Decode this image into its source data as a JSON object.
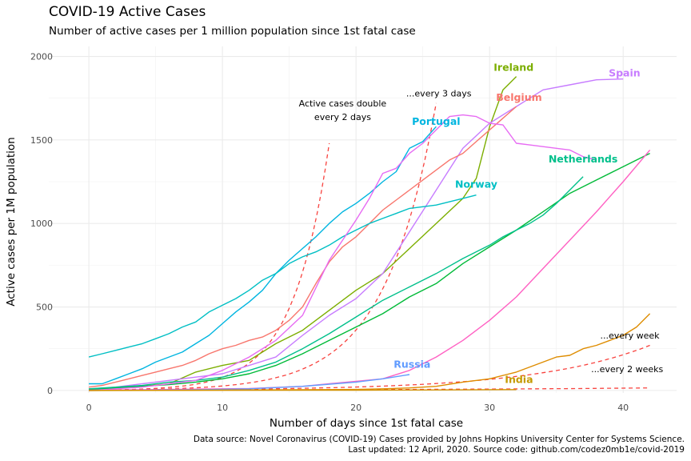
{
  "chart_data": {
    "type": "line",
    "title": "COVID-19 Active Cases",
    "subtitle": "Number of active cases per 1 million population since 1st fatal case",
    "xlabel": "Number of days since 1st fatal case",
    "ylabel": "Active cases per 1M population",
    "xlim": [
      -3,
      44
    ],
    "ylim": [
      -15,
      2060
    ],
    "x_ticks": [
      0,
      10,
      20,
      30,
      40
    ],
    "y_ticks": [
      0,
      500,
      1000,
      1500,
      2000
    ],
    "x_tick_labels": [
      "0",
      "10",
      "20",
      "30",
      "40"
    ],
    "y_tick_labels": [
      "0",
      "500",
      "1000",
      "1500",
      "2000"
    ],
    "grid": true,
    "legend": "none",
    "series": [
      {
        "name": "Ireland",
        "color": "#7CAE00",
        "x": [
          0,
          2,
          4,
          6,
          8,
          10,
          12,
          14,
          16,
          18,
          20,
          22,
          24,
          26,
          28,
          29,
          30,
          31,
          32
        ],
        "y": [
          5,
          15,
          25,
          40,
          110,
          150,
          180,
          280,
          360,
          480,
          600,
          700,
          850,
          1000,
          1150,
          1270,
          1580,
          1800,
          1880
        ]
      },
      {
        "name": "Spain",
        "color": "#C77CFF",
        "x": [
          0,
          2,
          4,
          6,
          8,
          10,
          12,
          14,
          16,
          18,
          20,
          22,
          24,
          26,
          28,
          30,
          32,
          34,
          36,
          38,
          40
        ],
        "y": [
          5,
          20,
          40,
          60,
          80,
          100,
          150,
          200,
          330,
          450,
          550,
          700,
          950,
          1200,
          1450,
          1600,
          1700,
          1800,
          1830,
          1860,
          1865
        ]
      },
      {
        "name": "Belgium",
        "color": "#F8766D",
        "x": [
          0,
          1,
          2,
          3,
          4,
          5,
          6,
          7,
          8,
          9,
          10,
          11,
          12,
          13,
          14,
          15,
          16,
          17,
          18,
          19,
          20,
          21,
          22,
          23,
          24,
          25,
          26,
          27,
          28,
          29,
          30,
          31,
          32
        ],
        "y": [
          20,
          30,
          50,
          70,
          90,
          110,
          130,
          150,
          180,
          220,
          250,
          270,
          300,
          320,
          360,
          420,
          500,
          640,
          770,
          860,
          920,
          1000,
          1080,
          1140,
          1200,
          1260,
          1320,
          1380,
          1420,
          1490,
          1560,
          1630,
          1700
        ]
      },
      {
        "name": "Portugal",
        "color": "#00B5E0",
        "x": [
          0,
          1,
          2,
          3,
          4,
          5,
          6,
          7,
          8,
          9,
          10,
          11,
          12,
          13,
          14,
          15,
          16,
          17,
          18,
          19,
          20,
          21,
          22,
          23,
          24,
          25,
          26
        ],
        "y": [
          40,
          40,
          70,
          100,
          130,
          170,
          200,
          230,
          280,
          330,
          400,
          470,
          530,
          600,
          700,
          780,
          850,
          920,
          1000,
          1070,
          1120,
          1180,
          1250,
          1310,
          1450,
          1490,
          1580
        ]
      },
      {
        "name": "Norway",
        "color": "#00BFC4",
        "x": [
          0,
          1,
          2,
          3,
          4,
          5,
          6,
          7,
          8,
          9,
          10,
          11,
          12,
          13,
          14,
          15,
          16,
          17,
          18,
          19,
          20,
          21,
          22,
          23,
          24,
          25,
          26,
          27,
          28,
          29
        ],
        "y": [
          200,
          220,
          240,
          260,
          280,
          310,
          340,
          380,
          410,
          470,
          510,
          550,
          600,
          660,
          700,
          760,
          800,
          830,
          870,
          920,
          960,
          1000,
          1030,
          1060,
          1090,
          1100,
          1110,
          1130,
          1150,
          1170
        ]
      },
      {
        "name": "Netherlands",
        "color": "#00BA38",
        "x": [
          0,
          2,
          4,
          6,
          8,
          10,
          12,
          14,
          16,
          18,
          20,
          22,
          24,
          26,
          28,
          30,
          32,
          34,
          36,
          38,
          40,
          42
        ],
        "y": [
          5,
          15,
          25,
          35,
          50,
          70,
          100,
          150,
          220,
          300,
          380,
          460,
          560,
          640,
          760,
          860,
          960,
          1070,
          1180,
          1260,
          1340,
          1420
        ]
      },
      {
        "name": "Netherlands 2",
        "color": "#00C08B",
        "x": [
          0,
          2,
          4,
          6,
          8,
          10,
          12,
          14,
          16,
          18,
          20,
          22,
          24,
          26,
          28,
          30,
          31,
          32,
          33,
          34,
          35,
          36,
          37
        ],
        "y": [
          10,
          20,
          30,
          50,
          60,
          80,
          120,
          170,
          250,
          340,
          440,
          540,
          620,
          700,
          790,
          870,
          920,
          960,
          1000,
          1050,
          1120,
          1200,
          1280
        ]
      },
      {
        "name": "Netherlands 3",
        "color": "#FF61C3",
        "x": [
          0,
          4,
          8,
          12,
          16,
          18,
          20,
          22,
          24,
          26,
          28,
          30,
          32,
          34,
          36,
          38,
          40,
          42
        ],
        "y": [
          2,
          4,
          8,
          12,
          25,
          40,
          55,
          70,
          120,
          200,
          300,
          420,
          560,
          730,
          900,
          1070,
          1250,
          1440
        ]
      },
      {
        "name": "Spain 2",
        "color": "#E76BF3",
        "x": [
          0,
          2,
          4,
          6,
          8,
          10,
          12,
          14,
          16,
          18,
          20,
          21,
          22,
          23,
          24,
          25,
          26,
          27,
          28,
          29,
          30,
          31,
          32,
          33,
          34,
          35,
          36,
          37,
          38
        ],
        "y": [
          0,
          10,
          20,
          40,
          60,
          120,
          200,
          300,
          450,
          780,
          1020,
          1150,
          1300,
          1330,
          1420,
          1480,
          1560,
          1640,
          1650,
          1640,
          1600,
          1590,
          1480,
          1470,
          1460,
          1450,
          1440,
          1400,
          1380
        ]
      },
      {
        "name": "Russia",
        "color": "#619CFF",
        "x": [
          0,
          4,
          8,
          12,
          16,
          20,
          22,
          24
        ],
        "y": [
          0,
          2,
          4,
          10,
          25,
          50,
          70,
          95
        ]
      },
      {
        "name": "India",
        "color": "#DE8C00",
        "x": [
          0,
          4,
          8,
          12,
          16,
          20,
          22,
          24,
          26,
          28,
          30,
          32,
          34,
          35,
          36,
          37,
          38,
          39,
          40,
          41,
          42
        ],
        "y": [
          0,
          1,
          2,
          3,
          4,
          6,
          10,
          15,
          25,
          50,
          70,
          110,
          170,
          200,
          210,
          250,
          270,
          300,
          330,
          380,
          460
        ]
      },
      {
        "name": "India 2",
        "color": "#D39200",
        "x": [
          0,
          10,
          20,
          26,
          32
        ],
        "y": [
          0,
          1,
          2,
          3,
          5
        ]
      }
    ],
    "reference_lines": [
      {
        "label": "Active cases double every 2 days",
        "color": "#F8433F",
        "x": [
          0,
          18
        ],
        "y": [
          2,
          1480
        ]
      },
      {
        "label": "...every 3 days",
        "color": "#F8433F",
        "x": [
          0,
          26
        ],
        "y": [
          2,
          1720
        ]
      },
      {
        "label": "...every week",
        "color": "#F8433F",
        "x": [
          0,
          42
        ],
        "y": [
          2,
          270
        ]
      },
      {
        "label": "...every 2 weeks",
        "color": "#F8433F",
        "x": [
          0,
          42
        ],
        "y": [
          2,
          15
        ]
      }
    ],
    "annotations": [
      {
        "text": "Active cases double",
        "x": 19,
        "y": 1700,
        "color": "#000000",
        "weight": "normal"
      },
      {
        "text": "every 2 days",
        "x": 19,
        "y": 1620,
        "color": "#000000",
        "weight": "normal"
      },
      {
        "text": "...every 3 days",
        "x": 26.2,
        "y": 1760,
        "color": "#000000",
        "weight": "normal"
      },
      {
        "text": "...every week",
        "x": 40.5,
        "y": 310,
        "color": "#000000",
        "weight": "normal"
      },
      {
        "text": "...every 2 weeks",
        "x": 40.3,
        "y": 110,
        "color": "#000000",
        "weight": "normal"
      },
      {
        "text": "Ireland",
        "x": 31.8,
        "y": 1915,
        "color": "#7CAE00",
        "weight": "bold"
      },
      {
        "text": "Spain",
        "x": 40.1,
        "y": 1880,
        "color": "#C77CFF",
        "weight": "bold"
      },
      {
        "text": "Belgium",
        "x": 32.2,
        "y": 1735,
        "color": "#F8766D",
        "weight": "bold"
      },
      {
        "text": "Portugal",
        "x": 26.0,
        "y": 1590,
        "color": "#00B5E0",
        "weight": "bold"
      },
      {
        "text": "Norway",
        "x": 29.0,
        "y": 1215,
        "color": "#00BFC4",
        "weight": "bold"
      },
      {
        "text": "Netherlands",
        "x": 37.0,
        "y": 1365,
        "color": "#00C08B",
        "weight": "bold"
      },
      {
        "text": "Russia",
        "x": 24.2,
        "y": 135,
        "color": "#619CFF",
        "weight": "bold"
      },
      {
        "text": "India",
        "x": 32.2,
        "y": 45,
        "color": "#C49A00",
        "weight": "bold"
      }
    ]
  },
  "captions": {
    "line1": "Data source: Novel Coronavirus (COVID-19) Cases provided by Johns Hopkins University Center for Systems Science.",
    "line2": "Last updated: 12 April, 2020. Source code: github.com/codez0mb1e/covid-2019"
  }
}
